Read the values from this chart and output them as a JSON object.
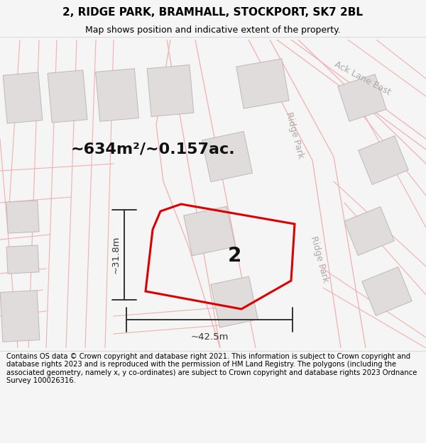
{
  "title_line1": "2, RIDGE PARK, BRAMHALL, STOCKPORT, SK7 2BL",
  "title_line2": "Map shows position and indicative extent of the property.",
  "footer_text": "Contains OS data © Crown copyright and database right 2021. This information is subject to Crown copyright and database rights 2023 and is reproduced with the permission of HM Land Registry. The polygons (including the associated geometry, namely x, y co-ordinates) are subject to Crown copyright and database rights 2023 Ordnance Survey 100026316.",
  "area_label": "~634m²/~0.157ac.",
  "property_number": "2",
  "dim_width": "~42.5m",
  "dim_height": "~31.8m",
  "map_bg": "#ffffff",
  "page_bg": "#f5f5f5",
  "road_line_color": "#f0b0b0",
  "building_fill": "#e0dcdc",
  "building_stroke": "#c0b8b8",
  "property_fill": "#ffffff",
  "property_stroke": "#dd0000",
  "street_label_color": "#b0a8a8",
  "dim_color": "#333333",
  "title_color": "#000000",
  "footer_color": "#000000",
  "title_fontsize": 11,
  "subtitle_fontsize": 9,
  "footer_fontsize": 7.2,
  "area_fontsize": 16,
  "propnum_fontsize": 20,
  "dim_fontsize": 9.5
}
